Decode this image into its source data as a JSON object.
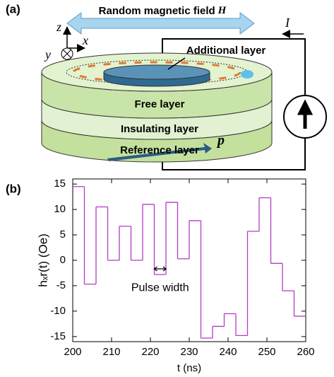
{
  "figure": {
    "panel_a": {
      "label": "(a)",
      "field_label": "Random magnetic field",
      "field_symbol": "H",
      "axis_z": "z",
      "axis_x": "x",
      "axis_y": "y",
      "current": "I",
      "additional_layer": "Additional layer",
      "free_layer": "Free layer",
      "insulating_layer": "Insulating layer",
      "reference_layer": "Reference layer",
      "polarization": "p"
    },
    "panel_b_label": "(b)"
  },
  "chart_data": {
    "type": "step",
    "xlabel": "t (ns)",
    "ylabel": "hₓr(t) (Oe)",
    "annotation": "Pulse width",
    "x": [
      200,
      203,
      206,
      209,
      212,
      215,
      218,
      221,
      224,
      227,
      230,
      233,
      236,
      239,
      242,
      245,
      248,
      251,
      254,
      257
    ],
    "values": [
      14.5,
      -4.7,
      10.5,
      0,
      6.7,
      0,
      11,
      -2.8,
      11.4,
      0.3,
      7.8,
      -15.3,
      -13,
      -10.5,
      -14.8,
      5.7,
      12.3,
      -0.6,
      -6,
      -11
    ],
    "color": "#b23cc4",
    "xlim": [
      200,
      260
    ],
    "ylim": [
      -16,
      16
    ],
    "xticks": [
      200,
      210,
      220,
      230,
      240,
      250,
      260
    ],
    "yticks": [
      15,
      10,
      5,
      0,
      -5,
      -10,
      -15
    ]
  }
}
